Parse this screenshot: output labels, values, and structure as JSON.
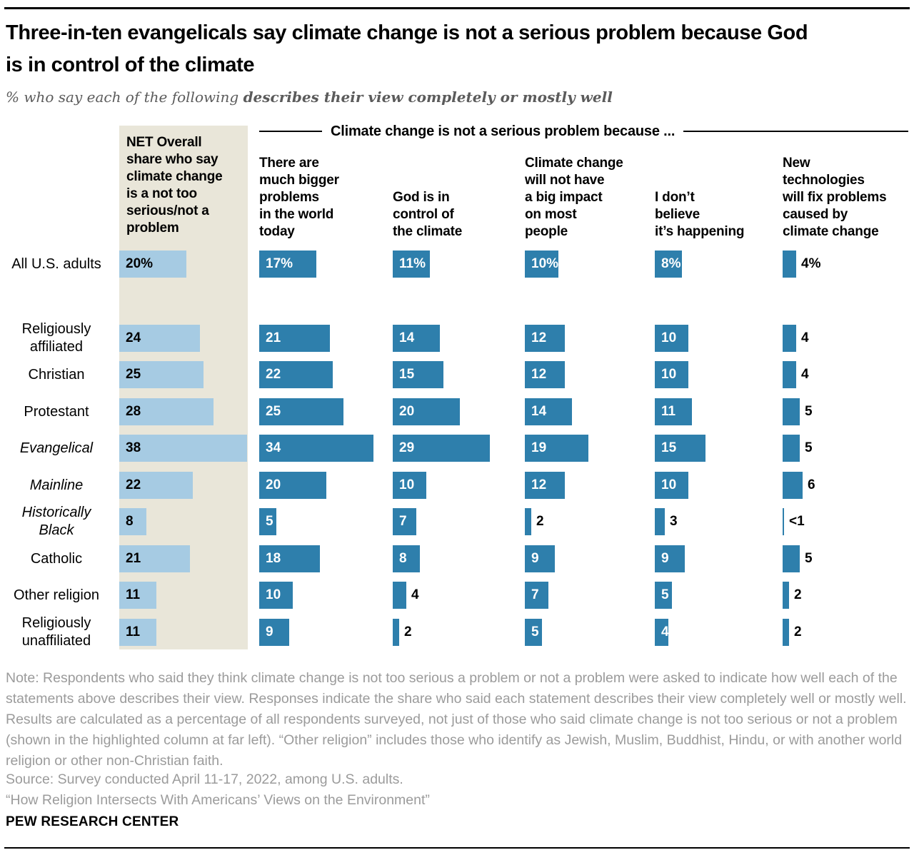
{
  "header": {
    "title": "Three-in-ten evangelicals say climate change is not a serious problem because God\nis in control of the climate",
    "subtitle_prefix": "% who say each of the following ",
    "subtitle_bold": "describes their view completely or mostly well"
  },
  "chart_data": {
    "type": "bar",
    "orientation": "horizontal",
    "unit": "percent",
    "span_header": "Climate change is not a serious problem because ...",
    "net_column_header": "NET Overall\nshare who say\nclimate change\nis a not too\nserious/not a\nproblem",
    "columns": [
      "There are\nmuch bigger\nproblems\nin the world\ntoday",
      "God is in\ncontrol of\nthe climate",
      "Climate change\nwill not have\na big impact\non most\npeople",
      "I don’t\nbelieve\nit’s happening",
      "New\ntechnologies\nwill fix problems\ncaused by\nclimate change"
    ],
    "colors": {
      "net_bar": "#a6cbe3",
      "bar": "#2e7fac",
      "highlight_bg": "#e9e6d9"
    },
    "rows": [
      {
        "label": "All U.S. adults",
        "italic": false,
        "net": {
          "v": 20,
          "t": "20%"
        },
        "cells": [
          {
            "v": 17,
            "t": "17%",
            "out": false
          },
          {
            "v": 11,
            "t": "11%",
            "out": false
          },
          {
            "v": 10,
            "t": "10%",
            "out": false
          },
          {
            "v": 8,
            "t": "8%",
            "out": false
          },
          {
            "v": 4,
            "t": "4%",
            "out": true
          }
        ]
      },
      {
        "label": "Religiously\naffiliated",
        "italic": false,
        "net": {
          "v": 24,
          "t": "24"
        },
        "cells": [
          {
            "v": 21,
            "t": "21",
            "out": false
          },
          {
            "v": 14,
            "t": "14",
            "out": false
          },
          {
            "v": 12,
            "t": "12",
            "out": false
          },
          {
            "v": 10,
            "t": "10",
            "out": false
          },
          {
            "v": 4,
            "t": "4",
            "out": true
          }
        ]
      },
      {
        "label": "Christian",
        "italic": false,
        "net": {
          "v": 25,
          "t": "25"
        },
        "cells": [
          {
            "v": 22,
            "t": "22",
            "out": false
          },
          {
            "v": 15,
            "t": "15",
            "out": false
          },
          {
            "v": 12,
            "t": "12",
            "out": false
          },
          {
            "v": 10,
            "t": "10",
            "out": false
          },
          {
            "v": 4,
            "t": "4",
            "out": true
          }
        ]
      },
      {
        "label": "Protestant",
        "italic": false,
        "net": {
          "v": 28,
          "t": "28"
        },
        "cells": [
          {
            "v": 25,
            "t": "25",
            "out": false
          },
          {
            "v": 20,
            "t": "20",
            "out": false
          },
          {
            "v": 14,
            "t": "14",
            "out": false
          },
          {
            "v": 11,
            "t": "11",
            "out": false
          },
          {
            "v": 5,
            "t": "5",
            "out": true
          }
        ]
      },
      {
        "label": "Evangelical",
        "italic": true,
        "net": {
          "v": 38,
          "t": "38"
        },
        "cells": [
          {
            "v": 34,
            "t": "34",
            "out": false
          },
          {
            "v": 29,
            "t": "29",
            "out": false
          },
          {
            "v": 19,
            "t": "19",
            "out": false
          },
          {
            "v": 15,
            "t": "15",
            "out": false
          },
          {
            "v": 5,
            "t": "5",
            "out": true
          }
        ]
      },
      {
        "label": "Mainline",
        "italic": true,
        "net": {
          "v": 22,
          "t": "22"
        },
        "cells": [
          {
            "v": 20,
            "t": "20",
            "out": false
          },
          {
            "v": 10,
            "t": "10",
            "out": false
          },
          {
            "v": 12,
            "t": "12",
            "out": false
          },
          {
            "v": 10,
            "t": "10",
            "out": false
          },
          {
            "v": 6,
            "t": "6",
            "out": true
          }
        ]
      },
      {
        "label": "Historically\nBlack",
        "italic": true,
        "net": {
          "v": 8,
          "t": "8"
        },
        "cells": [
          {
            "v": 5,
            "t": "5",
            "out": false
          },
          {
            "v": 7,
            "t": "7",
            "out": false
          },
          {
            "v": 2,
            "t": "2",
            "out": true
          },
          {
            "v": 3,
            "t": "3",
            "out": true
          },
          {
            "v": 0.4,
            "t": "<1",
            "out": true
          }
        ]
      },
      {
        "label": "Catholic",
        "italic": false,
        "net": {
          "v": 21,
          "t": "21"
        },
        "cells": [
          {
            "v": 18,
            "t": "18",
            "out": false
          },
          {
            "v": 8,
            "t": "8",
            "out": false
          },
          {
            "v": 9,
            "t": "9",
            "out": false
          },
          {
            "v": 9,
            "t": "9",
            "out": false
          },
          {
            "v": 5,
            "t": "5",
            "out": true
          }
        ]
      },
      {
        "label": "Other religion",
        "italic": false,
        "net": {
          "v": 11,
          "t": "11"
        },
        "cells": [
          {
            "v": 10,
            "t": "10",
            "out": false
          },
          {
            "v": 4,
            "t": "4",
            "out": true
          },
          {
            "v": 7,
            "t": "7",
            "out": false
          },
          {
            "v": 5,
            "t": "5",
            "out": false
          },
          {
            "v": 2,
            "t": "2",
            "out": true
          }
        ]
      },
      {
        "label": "Religiously\nunaffiliated",
        "italic": false,
        "net": {
          "v": 11,
          "t": "11"
        },
        "cells": [
          {
            "v": 9,
            "t": "9",
            "out": false
          },
          {
            "v": 2,
            "t": "2",
            "out": true
          },
          {
            "v": 5,
            "t": "5",
            "out": false
          },
          {
            "v": 4,
            "t": "4",
            "out": false
          },
          {
            "v": 2,
            "t": "2",
            "out": true
          }
        ]
      }
    ]
  },
  "footer": {
    "note": "Note: Respondents who said they think climate change is not too serious a problem or not a problem were asked to indicate how well each of the statements above describes their view. Responses indicate the share who said each statement describes their view completely well or mostly well. Results are calculated as a percentage of all respondents surveyed, not just of those who said climate change is not too serious or not a problem (shown in the highlighted column at far left). “Other religion” includes those who identify as Jewish, Muslim, Buddhist, Hindu, or with another world religion or other non-Christian faith.",
    "source": "Source: Survey conducted April 11-17, 2022, among U.S. adults.",
    "report": "“How Religion Intersects With Americans’ Views on the Environment”",
    "branding": "PEW RESEARCH CENTER"
  }
}
